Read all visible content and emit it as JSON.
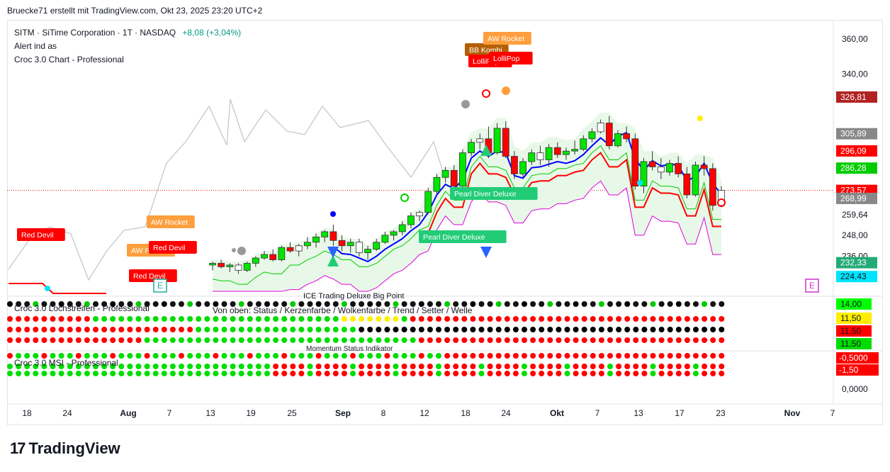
{
  "header": {
    "text": "Bruecke71 erstellt mit TradingView.com, Okt 23, 2025 23:20 UTC+2"
  },
  "legend": {
    "symbol": "SITM · SiTime Corporation · 1T · NASDAQ",
    "change": "+8,08 (+3,04%)",
    "line2": "Alert ind as",
    "line3": "Croc 3.0 Chart - Professional"
  },
  "pane_labels": {
    "pane2_title": "Croc 3.0 Lochstreifen - Professional",
    "pane2_sub": "Von oben: Status / Kerzenfarbe / Wolkenfarbe / Trend / Setter / Welle",
    "pane2_top": "ICE Trading Deluxe Big Point",
    "pane3_title": "Croc 3.0 MSI - Professional",
    "pane3_top": "Momentum Status Indikator"
  },
  "logo": {
    "text": "TradingView",
    "mark": "17"
  },
  "colors": {
    "up": "#00e600",
    "down": "#ff0000",
    "neutral": "#000000",
    "blue": "#0000ff",
    "trail": "#ff0000"
  },
  "chart_data": {
    "type": "candlestick",
    "price_axis": {
      "ticks": [
        360,
        340,
        326.81,
        305.89,
        296.09,
        286.28,
        273.57,
        259.64,
        248,
        236,
        232.33,
        224.43
      ],
      "range": [
        214,
        366
      ]
    },
    "price_labels": [
      {
        "text": "360,00",
        "value": 360
      },
      {
        "text": "340,00",
        "value": 340
      },
      {
        "text": "326,81",
        "value": 326.81
      },
      {
        "text": "305,89",
        "value": 305.89
      },
      {
        "text": "296,09",
        "value": 296.09
      },
      {
        "text": "286,28",
        "value": 286.28
      },
      {
        "text": "273,57",
        "value": 273.57
      },
      {
        "text": "268,99",
        "value": 268.99
      },
      {
        "text": "259,64",
        "value": 259.64
      },
      {
        "text": "248,00",
        "value": 248
      },
      {
        "text": "236,00",
        "value": 236
      },
      {
        "text": "232,33",
        "value": 232.33
      },
      {
        "text": "224,43",
        "value": 224.43
      }
    ],
    "pane2_labels": [
      "14,00",
      "11,50",
      "11,50",
      "11,50"
    ],
    "pane3_labels": [
      "-0,5000",
      "-1,50"
    ],
    "zero_label": "0,0000",
    "x_ticks": [
      "18",
      "24",
      "Aug",
      "7",
      "13",
      "19",
      "25",
      "Sep",
      "8",
      "12",
      "18",
      "24",
      "Okt",
      "7",
      "13",
      "17",
      "23",
      "Nov",
      "7"
    ],
    "signals": [
      "Red Devil",
      "AW Rocket",
      "AW Rocket",
      "Red Devil",
      "Red Devil",
      "BB Kombi",
      "AW Rocket",
      "LolliPop",
      "LolliPop",
      "Pearl Diver Deluxe",
      "Pearl Diver Deluxe"
    ],
    "candles": [
      {
        "o": 231,
        "h": 233,
        "l": 228,
        "c": 232
      },
      {
        "o": 232,
        "h": 234,
        "l": 229,
        "c": 230
      },
      {
        "o": 230,
        "h": 232,
        "l": 227,
        "c": 231
      },
      {
        "o": 231,
        "h": 232,
        "l": 226,
        "c": 228
      },
      {
        "o": 228,
        "h": 233,
        "l": 227,
        "c": 232
      },
      {
        "o": 232,
        "h": 236,
        "l": 230,
        "c": 235
      },
      {
        "o": 235,
        "h": 239,
        "l": 234,
        "c": 237
      },
      {
        "o": 237,
        "h": 240,
        "l": 233,
        "c": 234
      },
      {
        "o": 234,
        "h": 242,
        "l": 233,
        "c": 241
      },
      {
        "o": 241,
        "h": 244,
        "l": 238,
        "c": 239
      },
      {
        "o": 239,
        "h": 243,
        "l": 236,
        "c": 242
      },
      {
        "o": 242,
        "h": 247,
        "l": 240,
        "c": 244
      },
      {
        "o": 244,
        "h": 249,
        "l": 241,
        "c": 247
      },
      {
        "o": 247,
        "h": 251,
        "l": 244,
        "c": 250
      },
      {
        "o": 250,
        "h": 254,
        "l": 242,
        "c": 245
      },
      {
        "o": 245,
        "h": 248,
        "l": 239,
        "c": 242
      },
      {
        "o": 242,
        "h": 246,
        "l": 238,
        "c": 244
      },
      {
        "o": 244,
        "h": 246,
        "l": 236,
        "c": 238
      },
      {
        "o": 238,
        "h": 242,
        "l": 234,
        "c": 240
      },
      {
        "o": 240,
        "h": 246,
        "l": 239,
        "c": 244
      },
      {
        "o": 244,
        "h": 250,
        "l": 243,
        "c": 248
      },
      {
        "o": 248,
        "h": 251,
        "l": 245,
        "c": 250
      },
      {
        "o": 250,
        "h": 256,
        "l": 248,
        "c": 254
      },
      {
        "o": 254,
        "h": 261,
        "l": 252,
        "c": 259
      },
      {
        "o": 259,
        "h": 262,
        "l": 256,
        "c": 261
      },
      {
        "o": 261,
        "h": 275,
        "l": 260,
        "c": 273
      },
      {
        "o": 273,
        "h": 283,
        "l": 271,
        "c": 281
      },
      {
        "o": 281,
        "h": 287,
        "l": 278,
        "c": 285
      },
      {
        "o": 285,
        "h": 288,
        "l": 274,
        "c": 276
      },
      {
        "o": 276,
        "h": 297,
        "l": 275,
        "c": 295
      },
      {
        "o": 295,
        "h": 303,
        "l": 293,
        "c": 301
      },
      {
        "o": 301,
        "h": 306,
        "l": 297,
        "c": 303
      },
      {
        "o": 303,
        "h": 310,
        "l": 292,
        "c": 295
      },
      {
        "o": 295,
        "h": 312,
        "l": 294,
        "c": 309
      },
      {
        "o": 309,
        "h": 313,
        "l": 292,
        "c": 293
      },
      {
        "o": 293,
        "h": 296,
        "l": 280,
        "c": 283
      },
      {
        "o": 283,
        "h": 292,
        "l": 281,
        "c": 290
      },
      {
        "o": 290,
        "h": 297,
        "l": 288,
        "c": 295
      },
      {
        "o": 295,
        "h": 299,
        "l": 288,
        "c": 291
      },
      {
        "o": 291,
        "h": 300,
        "l": 287,
        "c": 298
      },
      {
        "o": 298,
        "h": 301,
        "l": 292,
        "c": 294
      },
      {
        "o": 294,
        "h": 298,
        "l": 291,
        "c": 296
      },
      {
        "o": 296,
        "h": 302,
        "l": 294,
        "c": 297
      },
      {
        "o": 297,
        "h": 305,
        "l": 296,
        "c": 303
      },
      {
        "o": 303,
        "h": 309,
        "l": 301,
        "c": 307
      },
      {
        "o": 307,
        "h": 314,
        "l": 306,
        "c": 312
      },
      {
        "o": 312,
        "h": 316,
        "l": 297,
        "c": 299
      },
      {
        "o": 299,
        "h": 308,
        "l": 298,
        "c": 306
      },
      {
        "o": 306,
        "h": 310,
        "l": 301,
        "c": 303
      },
      {
        "o": 303,
        "h": 306,
        "l": 274,
        "c": 276
      },
      {
        "o": 276,
        "h": 292,
        "l": 272,
        "c": 290
      },
      {
        "o": 290,
        "h": 296,
        "l": 285,
        "c": 287
      },
      {
        "o": 287,
        "h": 292,
        "l": 280,
        "c": 284
      },
      {
        "o": 284,
        "h": 291,
        "l": 282,
        "c": 289
      },
      {
        "o": 289,
        "h": 293,
        "l": 281,
        "c": 283
      },
      {
        "o": 283,
        "h": 287,
        "l": 269,
        "c": 271
      },
      {
        "o": 271,
        "h": 290,
        "l": 270,
        "c": 288
      },
      {
        "o": 288,
        "h": 293,
        "l": 282,
        "c": 286
      },
      {
        "o": 286,
        "h": 289,
        "l": 262,
        "c": 265
      },
      {
        "o": 265,
        "h": 276,
        "l": 264,
        "c": 273.57
      }
    ]
  }
}
